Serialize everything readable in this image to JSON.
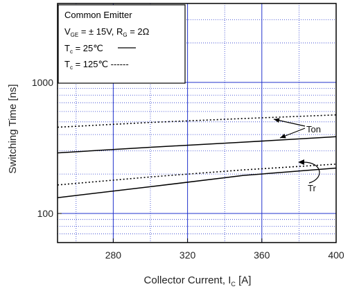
{
  "chart_data": {
    "type": "line",
    "xlabel_main": "Collector Current, I",
    "xlabel_sub": "C",
    "xlabel_unit": " [A]",
    "ylabel": "Switching Time  [ns]",
    "xlim": [
      250,
      400
    ],
    "ylim": [
      60,
      4000
    ],
    "y_scale": "log",
    "x_ticks": [
      280,
      320,
      360,
      400
    ],
    "x_tick_labels": [
      "280",
      "320",
      "360",
      "400"
    ],
    "y_ticks": [
      100,
      1000
    ],
    "y_tick_labels": [
      "100",
      "1000"
    ],
    "grid": true,
    "legend": {
      "line1": "Common Emitter",
      "line2_a": "V",
      "line2_a_sub": "GE",
      "line2_b": " = ±  15V, R",
      "line2_b_sub": "G",
      "line2_c": " = 2Ω",
      "line3_a": "T",
      "line3_a_sub": "c",
      "line3_b": " =   25℃",
      "line4_a": "T",
      "line4_a_sub": "c",
      "line4_b": " = 125℃ ------"
    },
    "series": [
      {
        "name": "Ton",
        "condition": "Tc = 25℃",
        "style": "solid",
        "x": [
          250,
          300,
          350,
          400
        ],
        "y": [
          290,
          320,
          350,
          385
        ]
      },
      {
        "name": "Ton",
        "condition": "Tc = 125℃",
        "style": "dotted",
        "x": [
          250,
          300,
          350,
          400
        ],
        "y": [
          455,
          495,
          530,
          565
        ]
      },
      {
        "name": "Tr",
        "condition": "Tc = 25℃",
        "style": "solid",
        "x": [
          250,
          300,
          350,
          400
        ],
        "y": [
          132,
          160,
          195,
          222
        ]
      },
      {
        "name": "Tr",
        "condition": "Tc = 125℃",
        "style": "dotted",
        "x": [
          250,
          300,
          350,
          400
        ],
        "y": [
          165,
          190,
          215,
          238
        ]
      }
    ],
    "annotations": [
      {
        "text": "Ton"
      },
      {
        "text": "Tr"
      }
    ]
  }
}
